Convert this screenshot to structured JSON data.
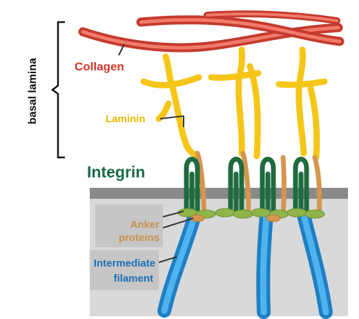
{
  "labels": {
    "basal_lamina": "basal lamina",
    "collagen": "Collagen",
    "laminin": "Laminin",
    "integrin": "Integrin",
    "anker_line1": "Anker",
    "anker_line2": "proteins",
    "filament_line1": "Intermediate",
    "filament_line2": "filament"
  },
  "colors": {
    "collagen": "#e64a3c",
    "collagen_text": "#d0372a",
    "laminin": "#f5c518",
    "laminin_text": "#e8b800",
    "integrin": "#1f6b3d",
    "integrin_text": "#1a6b45",
    "anker": "#d4964f",
    "anker_text": "#c98f4a",
    "filament": "#2e9be0",
    "filament_text": "#1e6fb8",
    "membrane": "#8a8a8a",
    "cytoplasm": "#d9d9d9",
    "plaque": "#8fb54a",
    "label_box": "#c6c6c6",
    "bracket": "#111111"
  }
}
